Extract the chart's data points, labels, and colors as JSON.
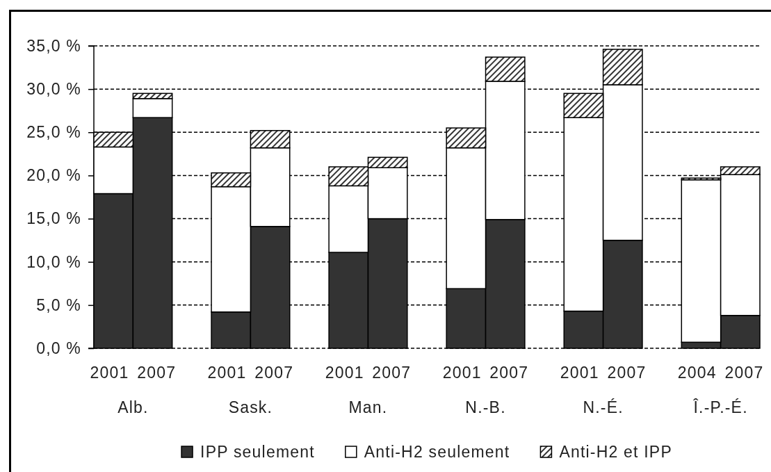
{
  "chart_data": {
    "type": "bar",
    "stacked": true,
    "categories": [
      "2001",
      "2007",
      "2001",
      "2007",
      "2001",
      "2007",
      "2001",
      "2007",
      "2001",
      "2007",
      "2004",
      "2007"
    ],
    "annotations": [
      "Alb.",
      "Sask.",
      "Man.",
      "N.-B.",
      "N.-É.",
      "Î.-P.-É."
    ],
    "series": [
      {
        "name": "IPP seulement",
        "color": "#333333",
        "values": [
          17.9,
          26.7,
          4.2,
          14.1,
          11.1,
          15.0,
          6.9,
          14.9,
          4.3,
          12.5,
          0.7,
          3.8
        ]
      },
      {
        "name": "Anti-H2 seulement",
        "color": "#ffffff",
        "values": [
          5.4,
          2.2,
          14.5,
          9.1,
          7.7,
          5.9,
          16.3,
          16.0,
          22.4,
          18.0,
          18.8,
          16.3
        ]
      },
      {
        "name": "Anti-H2 et IPP",
        "color": "#000000",
        "values": [
          1.7,
          0.6,
          1.6,
          2.0,
          2.2,
          1.2,
          2.3,
          2.8,
          2.8,
          4.1,
          0.2,
          0.9
        ]
      }
    ],
    "ylim": [
      0,
      35
    ],
    "yticks": [
      {
        "value": 0,
        "label": "0,0 %"
      },
      {
        "value": 5,
        "label": "5,0 %"
      },
      {
        "value": 10,
        "label": "10,0 %"
      },
      {
        "value": 15,
        "label": "15,0 %"
      },
      {
        "value": 20,
        "label": "20,0 %"
      },
      {
        "value": 25,
        "label": "25,0 %"
      },
      {
        "value": 30,
        "label": "30,0 %"
      },
      {
        "value": 35,
        "label": "35,0 %"
      }
    ],
    "grid": "y",
    "legend": "bottom"
  }
}
